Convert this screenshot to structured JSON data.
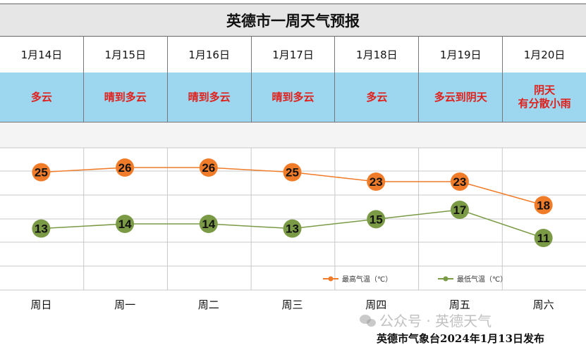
{
  "title": "英德市一周天气预报",
  "dates": [
    "1月14日",
    "1月15日",
    "1月16日",
    "1月17日",
    "1月18日",
    "1月19日",
    "1月20日"
  ],
  "weather": [
    "多云",
    "晴到多云",
    "晴到多云",
    "晴到多云",
    "多云",
    "多云到阴天",
    "阴天\n有分散小雨"
  ],
  "chart_data": {
    "type": "line",
    "categories": [
      "周日",
      "周一",
      "周二",
      "周三",
      "周四",
      "周五",
      "周六"
    ],
    "series": [
      {
        "name": "最高气温（℃）",
        "values": [
          25,
          26,
          26,
          25,
          23,
          23,
          18
        ],
        "color": "#f07c2a"
      },
      {
        "name": "最低气温（℃）",
        "values": [
          13,
          14,
          14,
          13,
          15,
          17,
          11
        ],
        "color": "#7a9a45"
      }
    ],
    "ylim": [
      0,
      30
    ],
    "grid": true,
    "legend": "bottom-right"
  },
  "watermark": "公众号 · 英德天气",
  "footer": "英德市气象台2024年1月13日发布"
}
